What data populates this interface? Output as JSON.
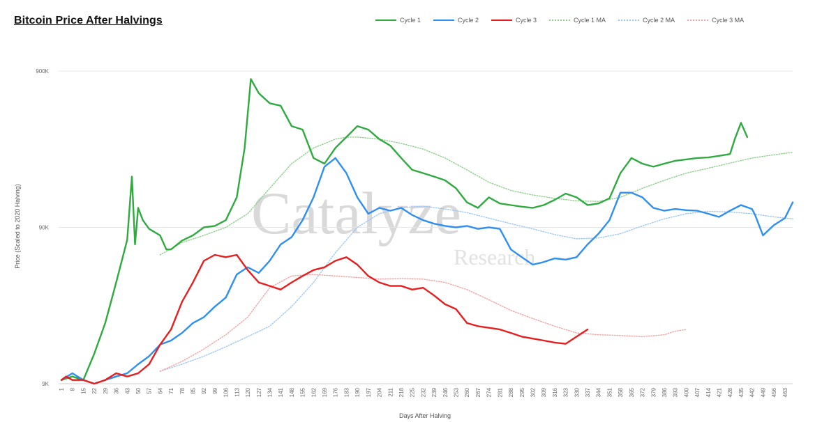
{
  "chart_data": {
    "type": "line",
    "title": "Bitcoin Price After Halvings",
    "xlabel": "Days After Halving",
    "ylabel": "Price (Scaled to 2020 Halving)",
    "yscale": "log",
    "ylim": [
      9000,
      900000
    ],
    "xlim": [
      1,
      468
    ],
    "yticks": [
      {
        "value": 9000,
        "label": "9K"
      },
      {
        "value": 90000,
        "label": "90K"
      },
      {
        "value": 900000,
        "label": "900K"
      }
    ],
    "xticks": [
      1,
      8,
      15,
      22,
      29,
      36,
      43,
      50,
      57,
      64,
      71,
      78,
      85,
      92,
      99,
      106,
      113,
      120,
      127,
      134,
      141,
      148,
      155,
      162,
      169,
      176,
      183,
      190,
      197,
      204,
      211,
      218,
      225,
      232,
      239,
      246,
      253,
      260,
      267,
      274,
      281,
      288,
      295,
      302,
      309,
      316,
      323,
      330,
      337,
      344,
      351,
      358,
      365,
      372,
      379,
      386,
      393,
      400,
      407,
      414,
      421,
      428,
      435,
      442,
      449,
      456,
      463
    ],
    "grid": "horizontal",
    "legend_position": "top-right",
    "watermark": {
      "main": "Catalyze",
      "sub": "Research"
    },
    "series": [
      {
        "name": "Cycle 1",
        "color": "#2eaa3f",
        "style": "solid",
        "x": [
          1,
          8,
          15,
          22,
          29,
          36,
          43,
          46,
          48,
          50,
          53,
          57,
          64,
          68,
          71,
          78,
          85,
          92,
          99,
          106,
          113,
          118,
          122,
          127,
          134,
          141,
          148,
          155,
          162,
          169,
          176,
          183,
          190,
          197,
          204,
          211,
          218,
          225,
          232,
          239,
          246,
          253,
          260,
          267,
          274,
          281,
          288,
          295,
          302,
          309,
          316,
          323,
          330,
          337,
          344,
          351,
          358,
          365,
          372,
          379,
          386,
          393,
          400,
          407,
          414,
          421,
          428,
          431,
          435,
          439
        ],
        "y": [
          9500,
          10000,
          9500,
          14000,
          22000,
          40000,
          75000,
          190000,
          70000,
          120000,
          100000,
          88000,
          80000,
          65000,
          65000,
          74000,
          80000,
          90000,
          92000,
          100000,
          140000,
          290000,
          800000,
          650000,
          560000,
          540000,
          400000,
          380000,
          250000,
          230000,
          290000,
          340000,
          400000,
          380000,
          330000,
          300000,
          250000,
          210000,
          200000,
          190000,
          180000,
          160000,
          130000,
          120000,
          140000,
          128000,
          125000,
          122000,
          120000,
          125000,
          135000,
          148000,
          140000,
          125000,
          128000,
          138000,
          200000,
          250000,
          230000,
          220000,
          230000,
          240000,
          245000,
          250000,
          252000,
          258000,
          265000,
          330000,
          420000,
          340000
        ]
      },
      {
        "name": "Cycle 2",
        "color": "#2e8ff0",
        "style": "solid",
        "x": [
          1,
          8,
          15,
          22,
          29,
          36,
          43,
          50,
          57,
          64,
          71,
          78,
          85,
          92,
          99,
          106,
          113,
          120,
          127,
          134,
          141,
          148,
          155,
          162,
          169,
          176,
          180,
          183,
          190,
          197,
          204,
          211,
          218,
          225,
          232,
          239,
          246,
          253,
          260,
          267,
          274,
          281,
          288,
          295,
          302,
          309,
          316,
          323,
          330,
          337,
          344,
          351,
          358,
          365,
          372,
          379,
          386,
          393,
          400,
          407,
          414,
          421,
          428,
          435,
          442,
          444,
          449,
          456,
          463,
          468
        ],
        "y": [
          9500,
          10500,
          9500,
          9000,
          9500,
          10000,
          10500,
          12000,
          13500,
          16000,
          17000,
          19000,
          22000,
          24000,
          28000,
          32000,
          45000,
          50000,
          46000,
          55000,
          70000,
          78000,
          100000,
          140000,
          220000,
          250000,
          220000,
          200000,
          140000,
          110000,
          120000,
          115000,
          120000,
          108000,
          100000,
          95000,
          92000,
          90000,
          92000,
          88000,
          90000,
          88000,
          65000,
          58000,
          52000,
          54000,
          57000,
          56000,
          58000,
          70000,
          82000,
          100000,
          150000,
          150000,
          140000,
          120000,
          115000,
          118000,
          116000,
          115000,
          110000,
          105000,
          115000,
          125000,
          118000,
          108000,
          80000,
          93000,
          103000,
          130000
        ]
      },
      {
        "name": "Cycle 3",
        "color": "#e81d1d",
        "style": "solid",
        "x": [
          1,
          4,
          8,
          15,
          22,
          29,
          36,
          43,
          50,
          57,
          64,
          71,
          78,
          85,
          92,
          99,
          106,
          113,
          120,
          127,
          134,
          141,
          148,
          155,
          162,
          169,
          176,
          183,
          190,
          197,
          204,
          211,
          218,
          225,
          232,
          239,
          246,
          253,
          260,
          267,
          274,
          281,
          288,
          295,
          302,
          309,
          316,
          323,
          330,
          337
        ],
        "y": [
          9500,
          10000,
          9500,
          9500,
          9000,
          9500,
          10500,
          10000,
          10500,
          12000,
          16000,
          20000,
          30000,
          40000,
          55000,
          60000,
          58000,
          60000,
          48000,
          40000,
          38000,
          36000,
          40000,
          44000,
          48000,
          50000,
          55000,
          58000,
          52000,
          44000,
          40000,
          38000,
          38000,
          36000,
          37000,
          33000,
          29000,
          27000,
          22000,
          21000,
          20500,
          20000,
          19000,
          18000,
          17500,
          17000,
          16500,
          16200,
          18000,
          20000
        ]
      },
      {
        "name": "Cycle 1 MA",
        "color": "#8fd08f",
        "style": "dotted",
        "x": [
          64,
          78,
          92,
          106,
          120,
          134,
          148,
          162,
          176,
          183,
          190,
          204,
          218,
          232,
          246,
          260,
          274,
          288,
          302,
          316,
          330,
          344,
          358,
          372,
          386,
          400,
          414,
          428,
          442,
          456,
          468
        ],
        "y": [
          60000,
          72000,
          80000,
          90000,
          110000,
          160000,
          230000,
          290000,
          330000,
          340000,
          340000,
          330000,
          310000,
          285000,
          250000,
          210000,
          175000,
          155000,
          145000,
          138000,
          133000,
          132000,
          140000,
          160000,
          180000,
          200000,
          215000,
          232000,
          250000,
          262000,
          272000
        ]
      },
      {
        "name": "Cycle 2 MA",
        "color": "#9cc8f3",
        "style": "dotted",
        "x": [
          64,
          78,
          92,
          106,
          120,
          134,
          148,
          162,
          176,
          190,
          204,
          218,
          232,
          246,
          260,
          274,
          288,
          302,
          316,
          330,
          344,
          358,
          372,
          386,
          400,
          414,
          428,
          442,
          456,
          468
        ],
        "y": [
          10800,
          12000,
          13500,
          15500,
          18000,
          21000,
          28000,
          40000,
          62000,
          90000,
          110000,
          120000,
          123000,
          118000,
          112000,
          103000,
          95000,
          88000,
          81000,
          76000,
          77000,
          82000,
          92000,
          102000,
          110000,
          114000,
          113000,
          110000,
          105000,
          102000
        ]
      },
      {
        "name": "Cycle 3 MA",
        "color": "#f2a4a4",
        "style": "dotted",
        "x": [
          64,
          78,
          92,
          106,
          120,
          134,
          148,
          162,
          176,
          190,
          204,
          218,
          232,
          246,
          260,
          274,
          288,
          302,
          316,
          330,
          344,
          358,
          372,
          386,
          393,
          400
        ],
        "y": [
          10800,
          12500,
          15000,
          18500,
          24000,
          37000,
          44000,
          45000,
          44000,
          43000,
          42000,
          42500,
          42000,
          40000,
          36000,
          31000,
          26500,
          23500,
          21000,
          19000,
          18500,
          18300,
          18000,
          18500,
          19500,
          20000
        ]
      }
    ]
  }
}
